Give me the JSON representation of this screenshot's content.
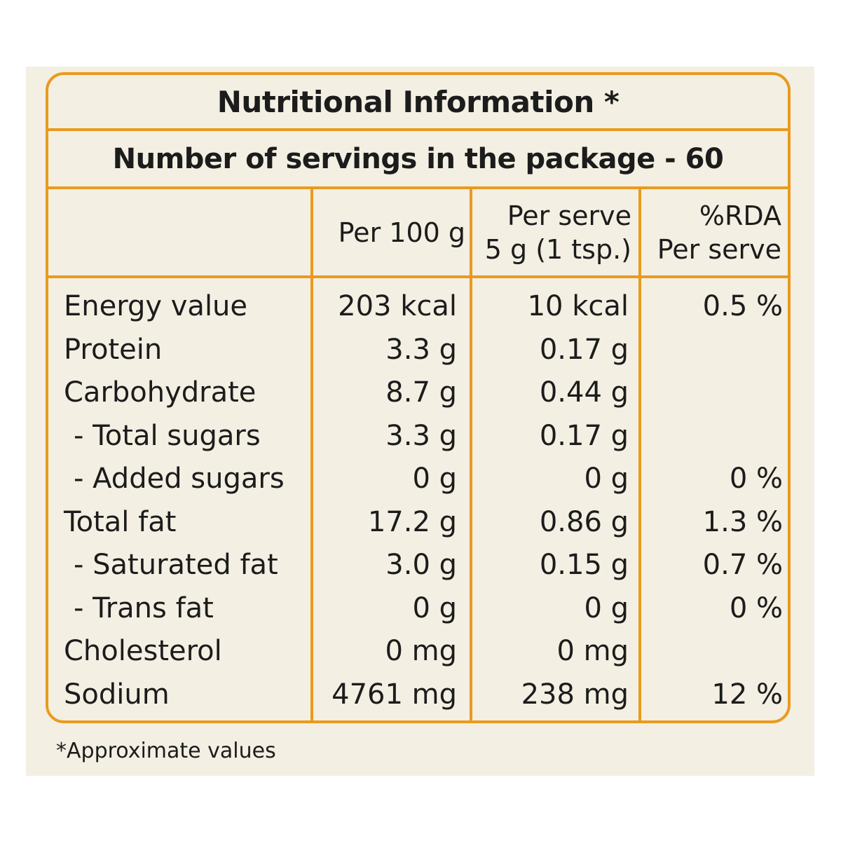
{
  "title": "Nutritional Information *",
  "servings": "Number of servings in the package - 60",
  "columns": {
    "per100_label": "Per 100 g",
    "perserve_line1": "Per serve",
    "perserve_line2": "5 g (1 tsp.)",
    "rda_line1": "%RDA",
    "rda_line2": "Per serve"
  },
  "rows": [
    {
      "name": "Energy value",
      "per100": "203 kcal",
      "perserve": "10 kcal",
      "rda": "0.5 %"
    },
    {
      "name": "Protein",
      "per100": "3.3 g",
      "perserve": "0.17 g",
      "rda": ""
    },
    {
      "name": "Carbohydrate",
      "per100": "8.7 g",
      "perserve": "0.44 g",
      "rda": ""
    },
    {
      "name": "- Total sugars",
      "per100": "3.3 g",
      "perserve": "0.17 g",
      "rda": ""
    },
    {
      "name": "- Added sugars",
      "per100": "0 g",
      "perserve": "0 g",
      "rda": "0 %"
    },
    {
      "name": "Total fat",
      "per100": "17.2 g",
      "perserve": "0.86 g",
      "rda": "1.3 %"
    },
    {
      "name": "- Saturated fat",
      "per100": "3.0 g",
      "perserve": "0.15 g",
      "rda": "0.7 %"
    },
    {
      "name": "- Trans fat",
      "per100": "0 g",
      "perserve": "0 g",
      "rda": "0 %"
    },
    {
      "name": "Cholesterol",
      "per100": "0 mg",
      "perserve": "0 mg",
      "rda": ""
    },
    {
      "name": "Sodium",
      "per100": "4761 mg",
      "perserve": "238 mg",
      "rda": "12 %"
    }
  ],
  "footnote": "*Approximate values",
  "colors": {
    "border": "#e99a1f",
    "background": "#f3efe3",
    "text": "#1c1c1c"
  }
}
